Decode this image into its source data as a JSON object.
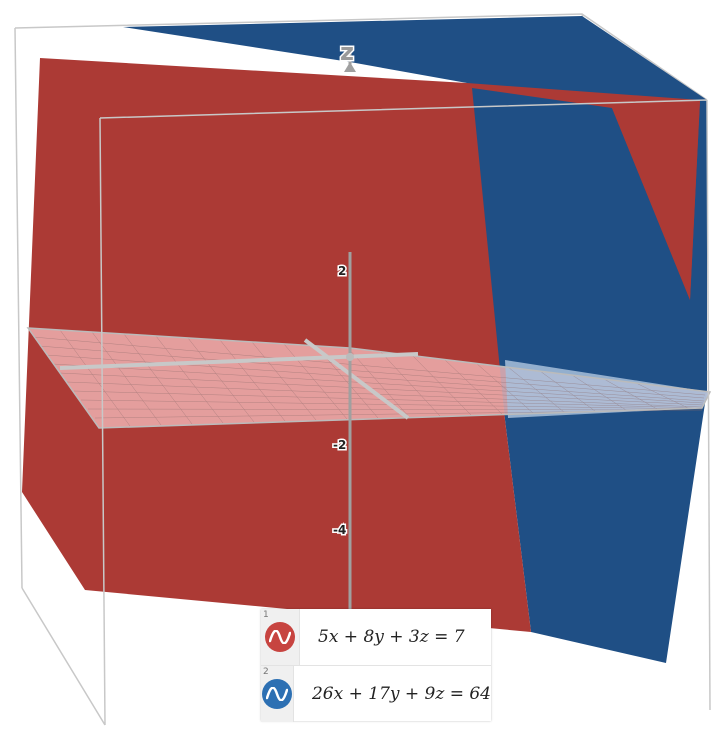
{
  "graph": {
    "z_axis_label": "z",
    "ticks": [
      "2",
      "-2",
      "-4"
    ]
  },
  "expressions": [
    {
      "index": "1",
      "latex": "5x + 8y + 3z = 7",
      "color": "#c74440",
      "icon": "wave-icon"
    },
    {
      "index": "2",
      "latex": "26x + 17y + 9z = 64",
      "color": "#2d70b3",
      "icon": "wave-icon"
    }
  ],
  "colors": {
    "plane1": "#ac3a35",
    "plane2": "#1f4f85",
    "xy_plane": "#f0b4b4",
    "box": "#c8c8c8"
  }
}
